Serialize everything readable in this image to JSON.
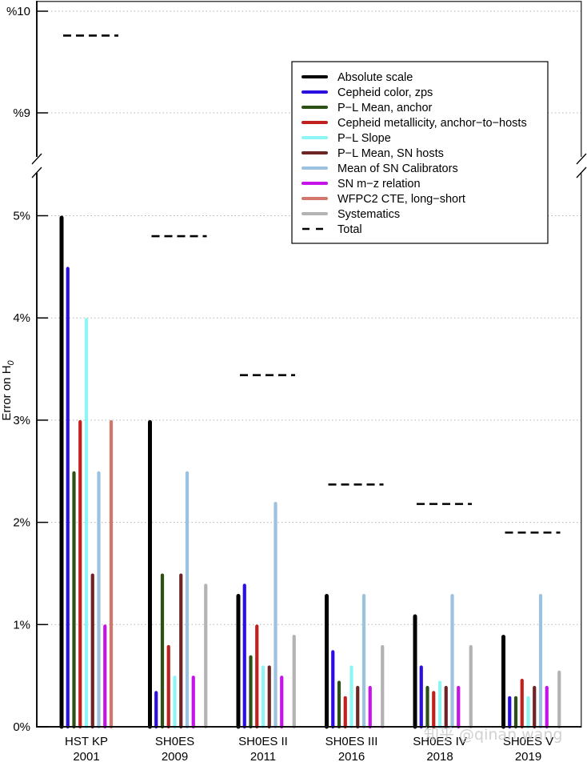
{
  "chart_data": {
    "type": "bar",
    "title": "",
    "xlabel": "",
    "ylabel": "Error on H",
    "ylabel_subscript": "0",
    "grid": true,
    "legend_position": "top-right",
    "y_axis_broken": true,
    "lower_ylim": [
      0,
      5.25
    ],
    "upper_ylim": [
      8.75,
      10.1
    ],
    "lower_ticks": [
      {
        "value": 0,
        "label": "0%"
      },
      {
        "value": 1,
        "label": "1%"
      },
      {
        "value": 2,
        "label": "2%"
      },
      {
        "value": 3,
        "label": "3%"
      },
      {
        "value": 4,
        "label": "4%"
      },
      {
        "value": 5,
        "label": "5%"
      }
    ],
    "upper_ticks": [
      {
        "value": 9,
        "label": "%9"
      },
      {
        "value": 10,
        "label": "%10"
      }
    ],
    "categories": [
      {
        "line1": "HST KP",
        "line2": "2001"
      },
      {
        "line1": "SH0ES",
        "line2": "2009"
      },
      {
        "line1": "SH0ES II",
        "line2": "2011"
      },
      {
        "line1": "SH0ES III",
        "line2": "2016"
      },
      {
        "line1": "SH0ES IV",
        "line2": "2018"
      },
      {
        "line1": "SH0ES V",
        "line2": "2019"
      }
    ],
    "series": [
      {
        "name": "Absolute scale",
        "color": "#000000",
        "values": [
          5.0,
          3.0,
          1.3,
          1.3,
          1.1,
          0.9
        ]
      },
      {
        "name": "Cepheid color, zps",
        "color": "#2a0fe0",
        "values": [
          4.5,
          0.35,
          1.4,
          0.75,
          0.6,
          0.3
        ]
      },
      {
        "name": "P−L Mean, anchor",
        "color": "#2d5016",
        "values": [
          2.5,
          1.5,
          0.7,
          0.45,
          0.4,
          0.3
        ]
      },
      {
        "name": "Cepheid metallicity, anchor−to−hosts",
        "color": "#c0201e",
        "values": [
          3.0,
          0.8,
          1.0,
          0.3,
          0.35,
          0.47
        ]
      },
      {
        "name": "P−L Slope",
        "color": "#8ef5f5",
        "values": [
          4.0,
          0.5,
          0.6,
          0.6,
          0.45,
          0.3
        ]
      },
      {
        "name": "P−L Mean, SN hosts",
        "color": "#6e2424",
        "values": [
          1.5,
          1.5,
          0.6,
          0.4,
          0.4,
          0.4
        ]
      },
      {
        "name": "Mean of SN Calibrators",
        "color": "#9cc2e0",
        "values": [
          2.5,
          2.5,
          2.2,
          1.3,
          1.3,
          1.3
        ]
      },
      {
        "name": "SN m−z relation",
        "color": "#c514e8",
        "values": [
          1.0,
          0.5,
          0.5,
          0.4,
          0.4,
          0.4
        ]
      },
      {
        "name": "WFPC2 CTE, long−short",
        "color": "#d4766c",
        "values": [
          3.0,
          null,
          null,
          null,
          null,
          null
        ]
      },
      {
        "name": "Systematics",
        "color": "#b3b3b3",
        "values": [
          null,
          1.4,
          0.9,
          0.8,
          0.8,
          0.55
        ]
      }
    ],
    "total": {
      "name": "Total",
      "style": "dashed",
      "color": "#000000",
      "values": [
        9.76,
        4.8,
        3.44,
        2.37,
        2.18,
        1.9
      ]
    }
  },
  "watermark": "知乎 @qinan wang"
}
